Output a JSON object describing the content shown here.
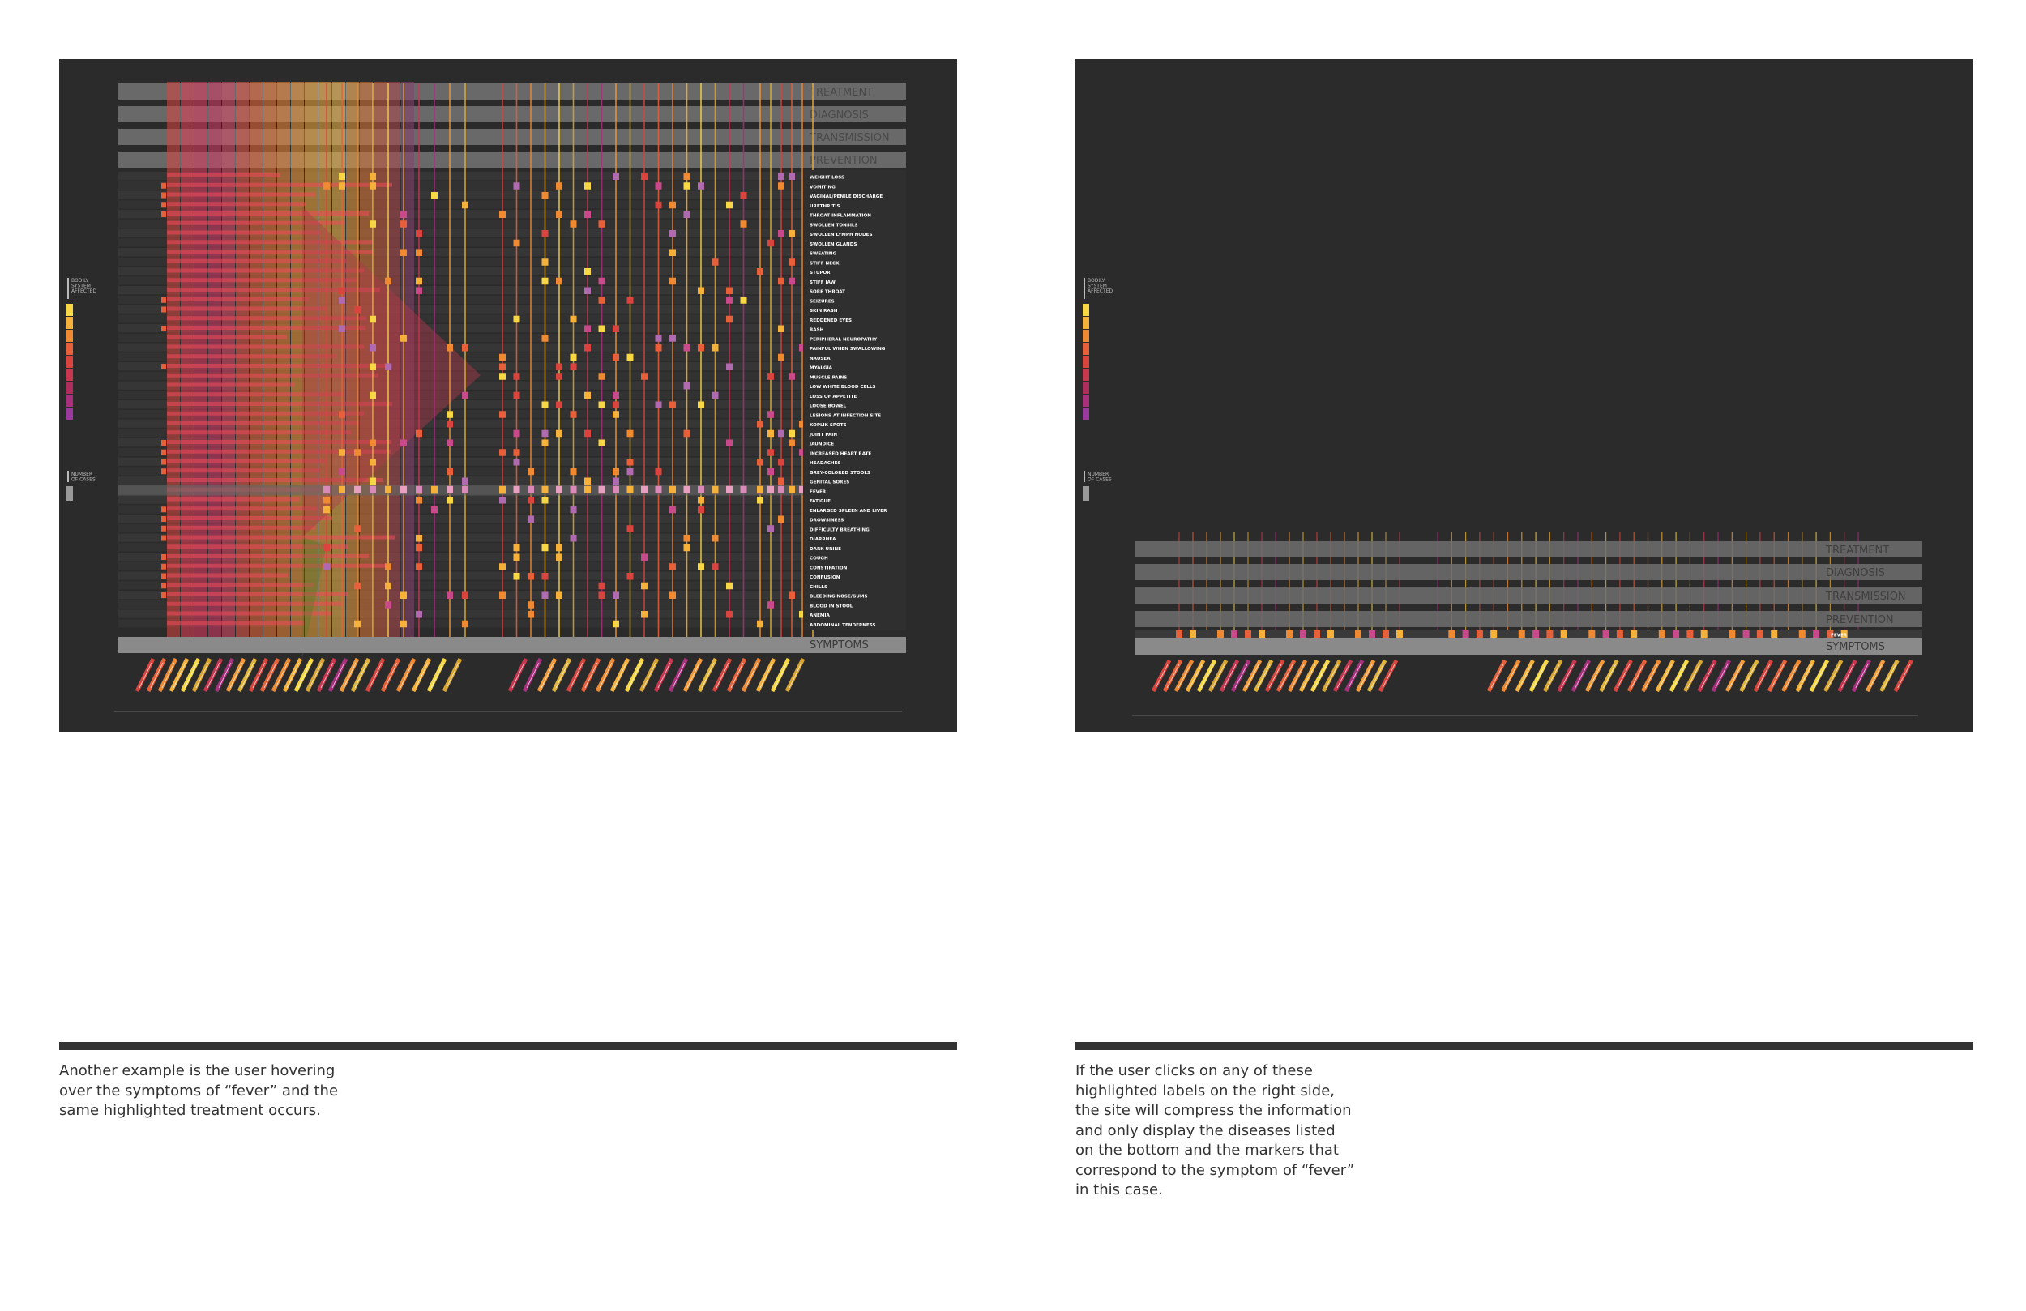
{
  "categories": [
    "TREATMENT",
    "DIAGNOSIS",
    "TRANSMISSION",
    "PREVENTION"
  ],
  "symptoms_label": "SYMPTOMS",
  "legend": {
    "body_system_label": [
      "BODILY",
      "SYSTEM",
      "AFFECTED"
    ],
    "cases_label": [
      "NUMBER",
      "OF CASES"
    ],
    "swatches": [
      "#f7d743",
      "#f6b13a",
      "#ef8a32",
      "#e8603a",
      "#d9453e",
      "#c93650",
      "#b12d5e",
      "#a8307d",
      "#9a3a9d"
    ]
  },
  "symptoms": [
    "WEIGHT LOSS",
    "VOMITING",
    "VAGINAL/PENILE DISCHARGE",
    "URETHRITIS",
    "THROAT INFLAMMATION",
    "SWOLLEN TONSILS",
    "SWOLLEN LYMPH NODES",
    "SWOLLEN GLANDS",
    "SWEATING",
    "STIFF NECK",
    "STUPOR",
    "STIFF JAW",
    "SORE THROAT",
    "SEIZURES",
    "SKIN RASH",
    "REDDENED EYES",
    "RASH",
    "PERIPHERAL NEUROPATHY",
    "PAINFUL WHEN SWALLOWING",
    "NAUSEA",
    "MYALGIA",
    "MUSCLE PAINS",
    "LOW WHITE BLOOD CELLS",
    "LOSS OF APPETITE",
    "LOOSE BOWEL",
    "LESIONS AT INFECTION SITE",
    "KOPLIK SPOTS",
    "JOINT PAIN",
    "JAUNDICE",
    "INCREASED HEART RATE",
    "HEADACHES",
    "GREY-COLORED STOOLS",
    "GENITAL SORES",
    "FEVER",
    "FATIGUE",
    "ENLARGED SPLEEN AND LIVER",
    "DROWSINESS",
    "DIFFICULTY BREATHING",
    "DIARRHEA",
    "DARK URINE",
    "COUGH",
    "CONSTIPATION",
    "CONFUSION",
    "CHILLS",
    "BLEEDING NOSE/GUMS",
    "BLOOD IN STOOL",
    "ANEMIA",
    "ABDOMINAL TENDERNESS"
  ],
  "highlighted_symptom": "FEVER",
  "caption_left": "Another example is the user hovering\nover the symptoms of “fever” and the\nsame highlighted treatment occurs.",
  "caption_right": "If the user clicks on any of these\nhighlighted labels on the right side,\nthe site will compress the information\nand only display the diseases listed\non the bottom and the markers that\ncorrespond to the symptom of “fever”\nin this case."
}
